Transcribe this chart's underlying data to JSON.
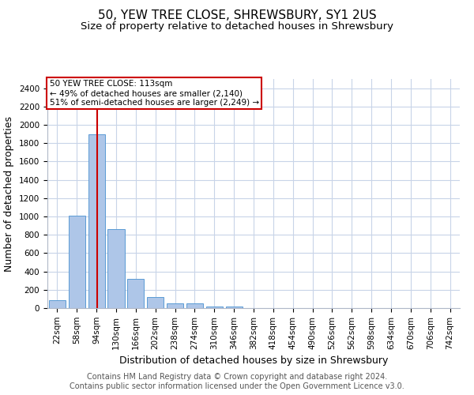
{
  "title": "50, YEW TREE CLOSE, SHREWSBURY, SY1 2US",
  "subtitle": "Size of property relative to detached houses in Shrewsbury",
  "xlabel": "Distribution of detached houses by size in Shrewsbury",
  "ylabel": "Number of detached properties",
  "footer1": "Contains HM Land Registry data © Crown copyright and database right 2024.",
  "footer2": "Contains public sector information licensed under the Open Government Licence v3.0.",
  "bar_labels": [
    "22sqm",
    "58sqm",
    "94sqm",
    "130sqm",
    "166sqm",
    "202sqm",
    "238sqm",
    "274sqm",
    "310sqm",
    "346sqm",
    "382sqm",
    "418sqm",
    "454sqm",
    "490sqm",
    "526sqm",
    "562sqm",
    "598sqm",
    "634sqm",
    "670sqm",
    "706sqm",
    "742sqm"
  ],
  "bar_values": [
    90,
    1010,
    1900,
    860,
    315,
    120,
    55,
    50,
    20,
    18,
    0,
    0,
    0,
    0,
    0,
    0,
    0,
    0,
    0,
    0,
    0
  ],
  "bar_color": "#aec6e8",
  "bar_edgecolor": "#5b9bd5",
  "vline_color": "#cc0000",
  "annotation_line1": "50 YEW TREE CLOSE: 113sqm",
  "annotation_line2": "← 49% of detached houses are smaller (2,140)",
  "annotation_line3": "51% of semi-detached houses are larger (2,249) →",
  "annotation_box_color": "#ffffff",
  "annotation_box_edgecolor": "#cc0000",
  "ylim": [
    0,
    2500
  ],
  "background_color": "#ffffff",
  "grid_color": "#c8d4e8",
  "title_fontsize": 11,
  "subtitle_fontsize": 9.5,
  "label_fontsize": 9,
  "tick_fontsize": 7.5,
  "footer_fontsize": 7
}
